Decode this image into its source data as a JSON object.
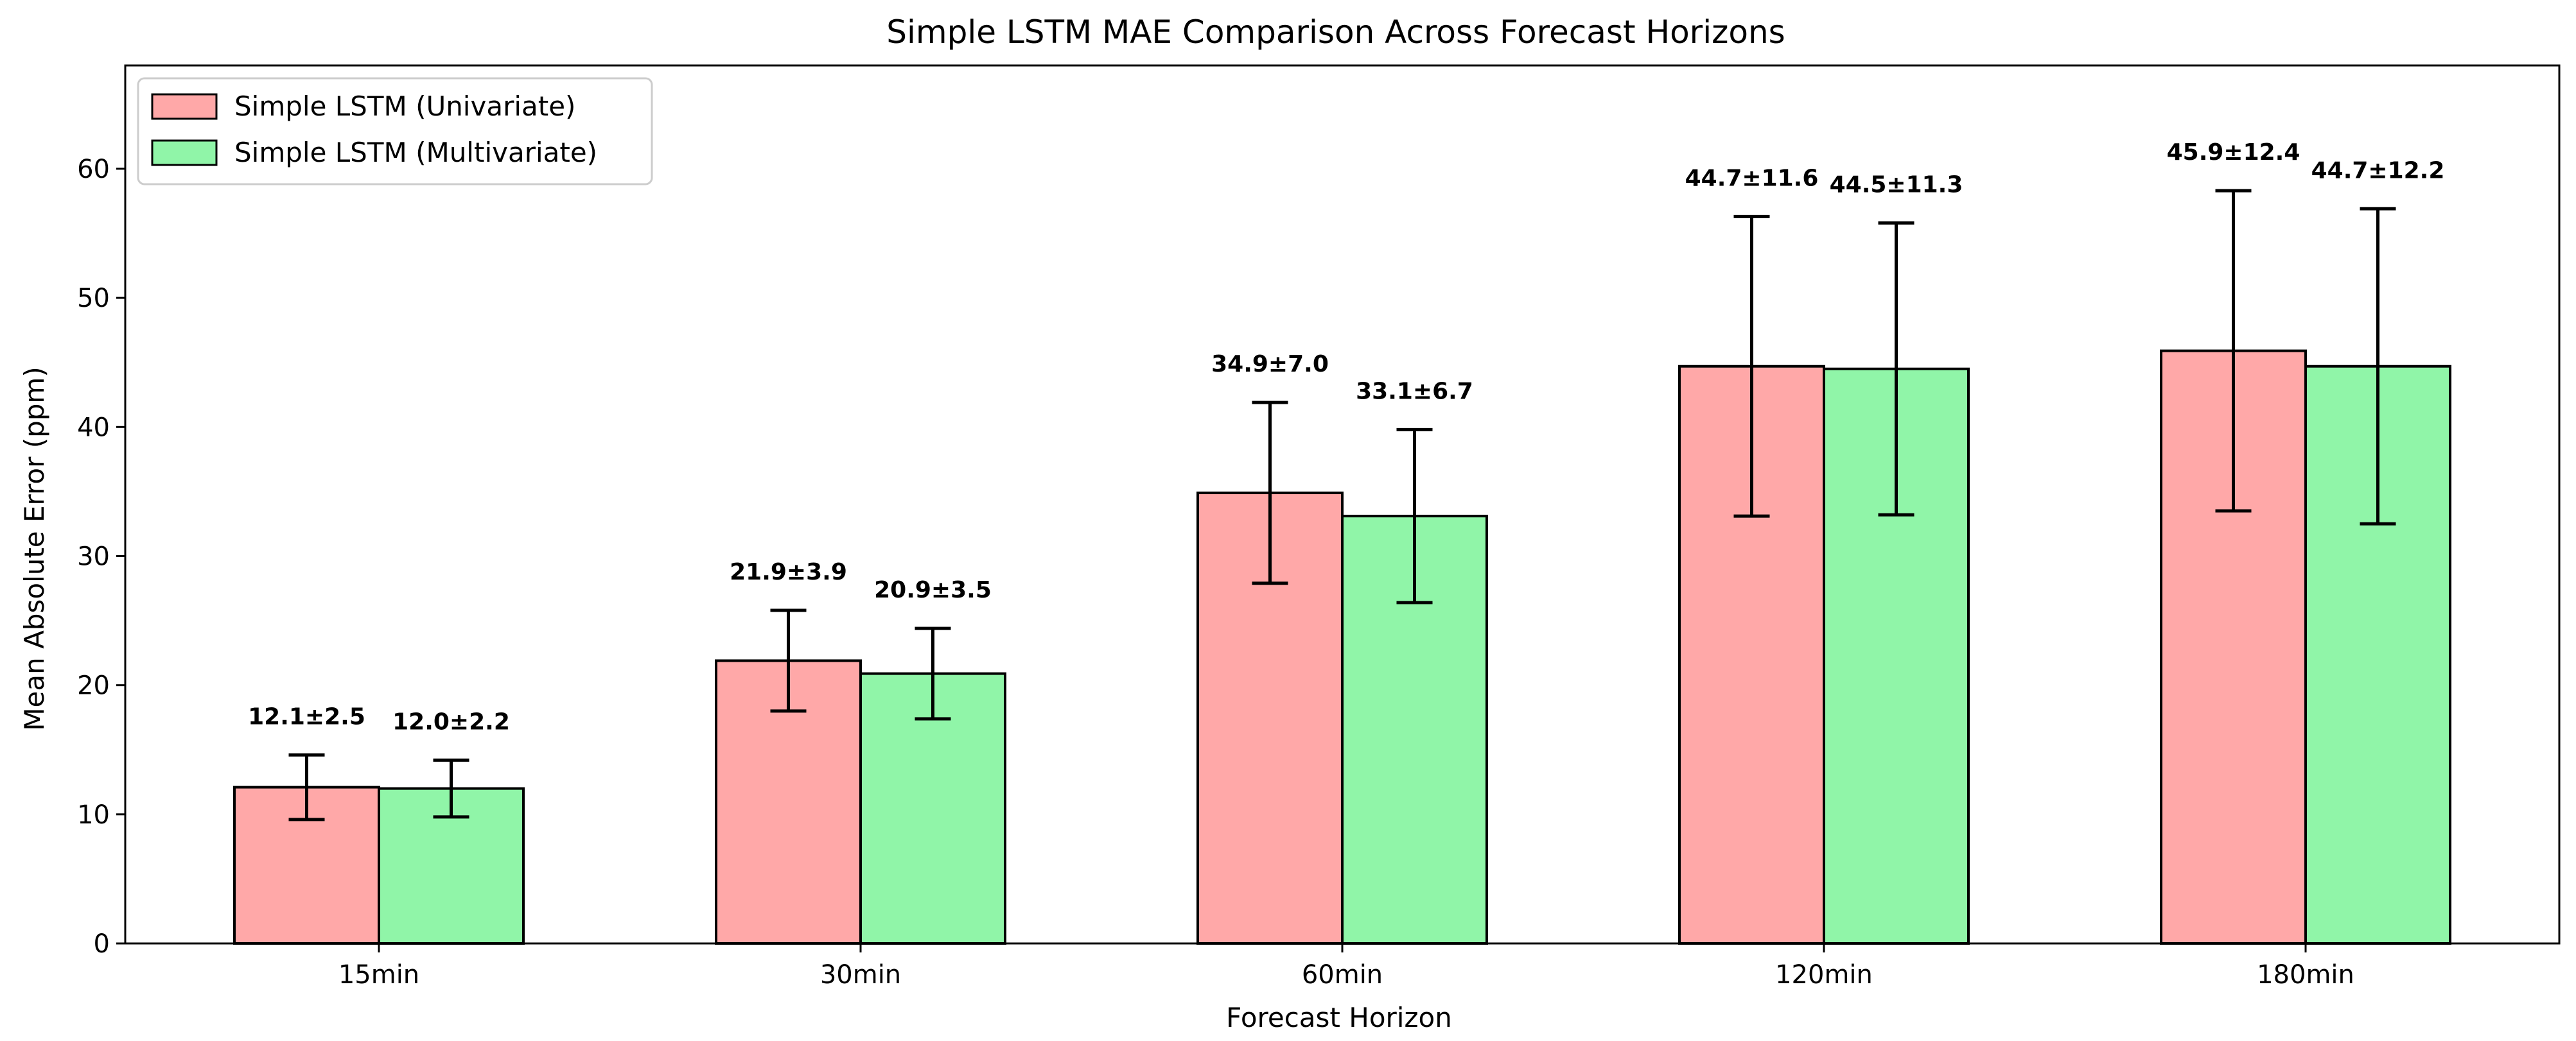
{
  "chart_data": {
    "type": "bar",
    "title": "Simple LSTM MAE Comparison Across Forecast Horizons",
    "xlabel": "Forecast Horizon",
    "ylabel": "Mean Absolute Error (ppm)",
    "ylim": [
      0,
      68
    ],
    "yticks": [
      0,
      10,
      20,
      30,
      40,
      50,
      60
    ],
    "categories": [
      "15min",
      "30min",
      "60min",
      "120min",
      "180min"
    ],
    "legend_position": "top-left",
    "grid": false,
    "series": [
      {
        "name": "Simple LSTM (Univariate)",
        "color": "#ffa8a8",
        "values": [
          12.1,
          21.9,
          34.9,
          44.7,
          45.9
        ],
        "errors": [
          2.5,
          3.9,
          7.0,
          11.6,
          12.4
        ],
        "labels": [
          "12.1±2.5",
          "21.9±3.9",
          "34.9±7.0",
          "44.7±11.6",
          "45.9±12.4"
        ]
      },
      {
        "name": "Simple LSTM (Multivariate)",
        "color": "#90f5a8",
        "values": [
          12.0,
          20.9,
          33.1,
          44.5,
          44.7
        ],
        "errors": [
          2.2,
          3.5,
          6.7,
          11.3,
          12.2
        ],
        "labels": [
          "12.0±2.2",
          "20.9±3.5",
          "33.1±6.7",
          "44.5±11.3",
          "44.7±12.2"
        ]
      }
    ]
  }
}
